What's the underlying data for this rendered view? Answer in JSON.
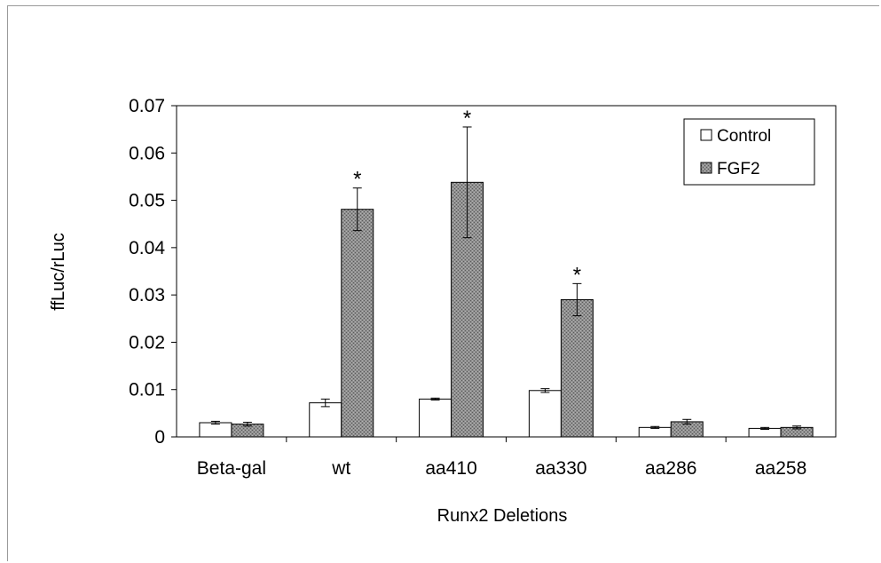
{
  "chart_data": {
    "type": "bar",
    "title": "",
    "xlabel": "Runx2 Deletions",
    "ylabel": "ffLuc/rLuc",
    "categories": [
      "Beta-gal",
      "wt",
      "aa410",
      "aa330",
      "aa286",
      "aa258"
    ],
    "ylim": [
      0,
      0.07
    ],
    "yticks": [
      "0",
      "0.01",
      "0.02",
      "0.03",
      "0.04",
      "0.05",
      "0.06",
      "0.07"
    ],
    "legend_position": "top-right",
    "grid": false,
    "series": [
      {
        "name": "Control",
        "color": "#ffffff",
        "pattern": "none",
        "values": [
          0.003,
          0.0072,
          0.008,
          0.0098,
          0.002,
          0.0018
        ],
        "errors": [
          0.0003,
          0.0008,
          0.0002,
          0.0004,
          0.0002,
          0.0002
        ]
      },
      {
        "name": "FGF2",
        "color": "#8f8f8f",
        "pattern": "dotted-gray",
        "values": [
          0.0027,
          0.0481,
          0.0538,
          0.029,
          0.0032,
          0.002
        ],
        "errors": [
          0.0004,
          0.0045,
          0.0117,
          0.0034,
          0.0005,
          0.0003
        ]
      }
    ],
    "annotations": [
      {
        "category": "wt",
        "series": "FGF2",
        "text": "*"
      },
      {
        "category": "aa410",
        "series": "FGF2",
        "text": "*"
      },
      {
        "category": "aa330",
        "series": "FGF2",
        "text": "*"
      }
    ]
  }
}
